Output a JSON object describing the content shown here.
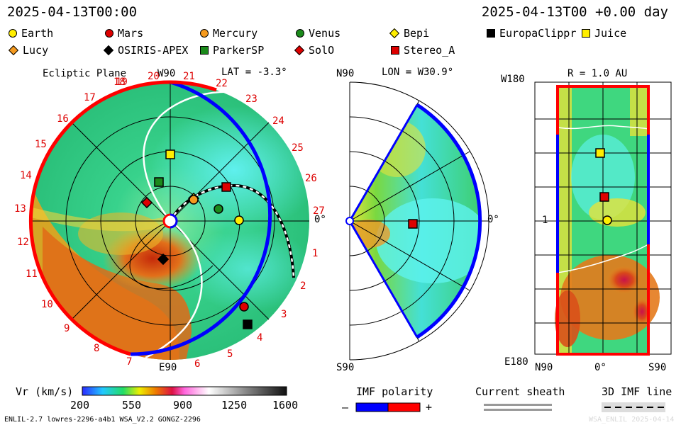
{
  "header": {
    "left_time": "2025-04-13T00:00",
    "right_time": "2025-04-13T00 +0.00 day"
  },
  "legend": {
    "items": [
      {
        "label": "Earth",
        "color": "#ffee00",
        "shape": "circle"
      },
      {
        "label": "Mars",
        "color": "#dd0000",
        "shape": "circle"
      },
      {
        "label": "Mercury",
        "color": "#f59a1e",
        "shape": "circle"
      },
      {
        "label": "Venus",
        "color": "#1b8a1b",
        "shape": "circle"
      },
      {
        "label": "Bepi",
        "color": "#ffee00",
        "shape": "diamond"
      },
      {
        "label": "EuropaClippr",
        "color": "#000000",
        "shape": "square"
      },
      {
        "label": "Juice",
        "color": "#ffee00",
        "shape": "square"
      },
      {
        "label": "Lucy",
        "color": "#f59a1e",
        "shape": "diamond"
      },
      {
        "label": "OSIRIS-APEX",
        "color": "#000000",
        "shape": "diamond"
      },
      {
        "label": "ParkerSP",
        "color": "#1b8a1b",
        "shape": "square"
      },
      {
        "label": "SolO",
        "color": "#dd0000",
        "shape": "diamond"
      },
      {
        "label": "Stereo_A",
        "color": "#dd0000",
        "shape": "square"
      }
    ]
  },
  "ecliptic": {
    "title": "Ecliptic Plane",
    "lat": "LAT = -3.3°",
    "top_label": "W90",
    "bottom_label": "E90",
    "right_label": "0°",
    "day_labels": [
      "19",
      "20",
      "21",
      "22",
      "23",
      "24",
      "25",
      "26",
      "27",
      "1",
      "2",
      "3",
      "4",
      "5",
      "6",
      "7",
      "8",
      "9",
      "10",
      "11",
      "12",
      "13",
      "14",
      "15",
      "16",
      "17",
      "18"
    ]
  },
  "meridional": {
    "lon": "LON = W30.9°",
    "top_label": "N90",
    "bottom_label": "S90",
    "right_label": "0°"
  },
  "radial": {
    "r": "R = 1.0 AU",
    "top_label": "W180",
    "bottom_label": "E180",
    "mid_label": "1",
    "x_labels": [
      "N90",
      "0°",
      "S90"
    ]
  },
  "colorbar": {
    "title": "Vr (km/s)",
    "ticks": [
      "200",
      "550",
      "900",
      "1250",
      "1600"
    ]
  },
  "imf": {
    "title": "IMF polarity",
    "minus": "–",
    "plus": "+"
  },
  "sheath": {
    "title": "Current sheath"
  },
  "imf3d": {
    "title": "3D IMF line"
  },
  "footer": {
    "left": "ENLIL-2.7 lowres-2296-a4b1 WSA_V2.2 GONGZ-2296",
    "right": "WSA_ENLIL  2025-04-14"
  },
  "colors": {
    "ambient": "#2fd08a",
    "fast": "#d94a10",
    "positive": "#ff0000",
    "negative": "#0000ff"
  }
}
